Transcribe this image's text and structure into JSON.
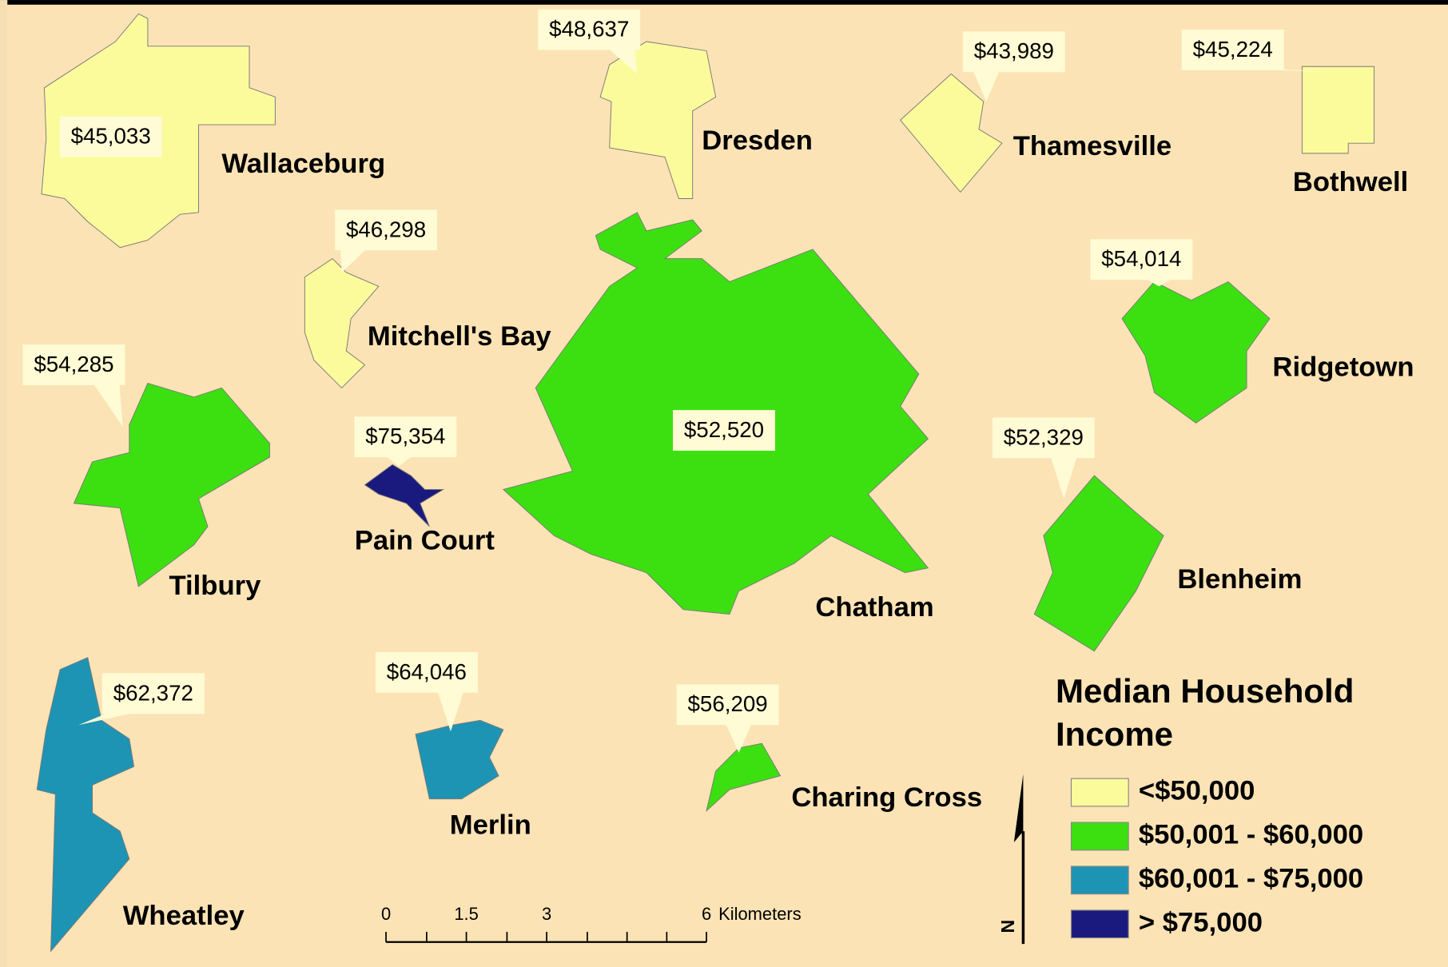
{
  "map": {
    "legend": {
      "title": "Median Household Income",
      "classes": [
        {
          "label": "<$50,000",
          "color": "#fbfb9c",
          "towns": [
            {
              "name": "Wallaceburg",
              "income": "$45,033"
            },
            {
              "name": "Dresden",
              "income": "$48,637"
            },
            {
              "name": "Thamesville",
              "income": "$43,989"
            },
            {
              "name": "Bothwell",
              "income": "$45,224"
            },
            {
              "name": "Mitchell's Bay",
              "income": "$46,298"
            }
          ]
        },
        {
          "label": "$50,001 - $60,000",
          "color": "#3ce010",
          "towns": [
            {
              "name": "Chatham",
              "income": "$52,520"
            },
            {
              "name": "Tilbury",
              "income": "$54,285"
            },
            {
              "name": "Ridgetown",
              "income": "$54,014"
            },
            {
              "name": "Blenheim",
              "income": "$52,329"
            },
            {
              "name": "Charing Cross",
              "income": "$56,209"
            }
          ]
        },
        {
          "label": "$60,001 - $75,000",
          "color": "#1e94b4",
          "towns": [
            {
              "name": "Wheatley",
              "income": "$62,372"
            },
            {
              "name": "Merlin",
              "income": "$64,046"
            }
          ]
        },
        {
          "label": "> $75,000",
          "color": "#1a1a7e",
          "towns": [
            {
              "name": "Pain Court",
              "income": "$75,354"
            }
          ]
        }
      ]
    },
    "scale_bar": {
      "labels": [
        "0",
        "1.5",
        "3",
        "6"
      ],
      "unit": "Kilometers"
    },
    "north_arrow": "N"
  }
}
